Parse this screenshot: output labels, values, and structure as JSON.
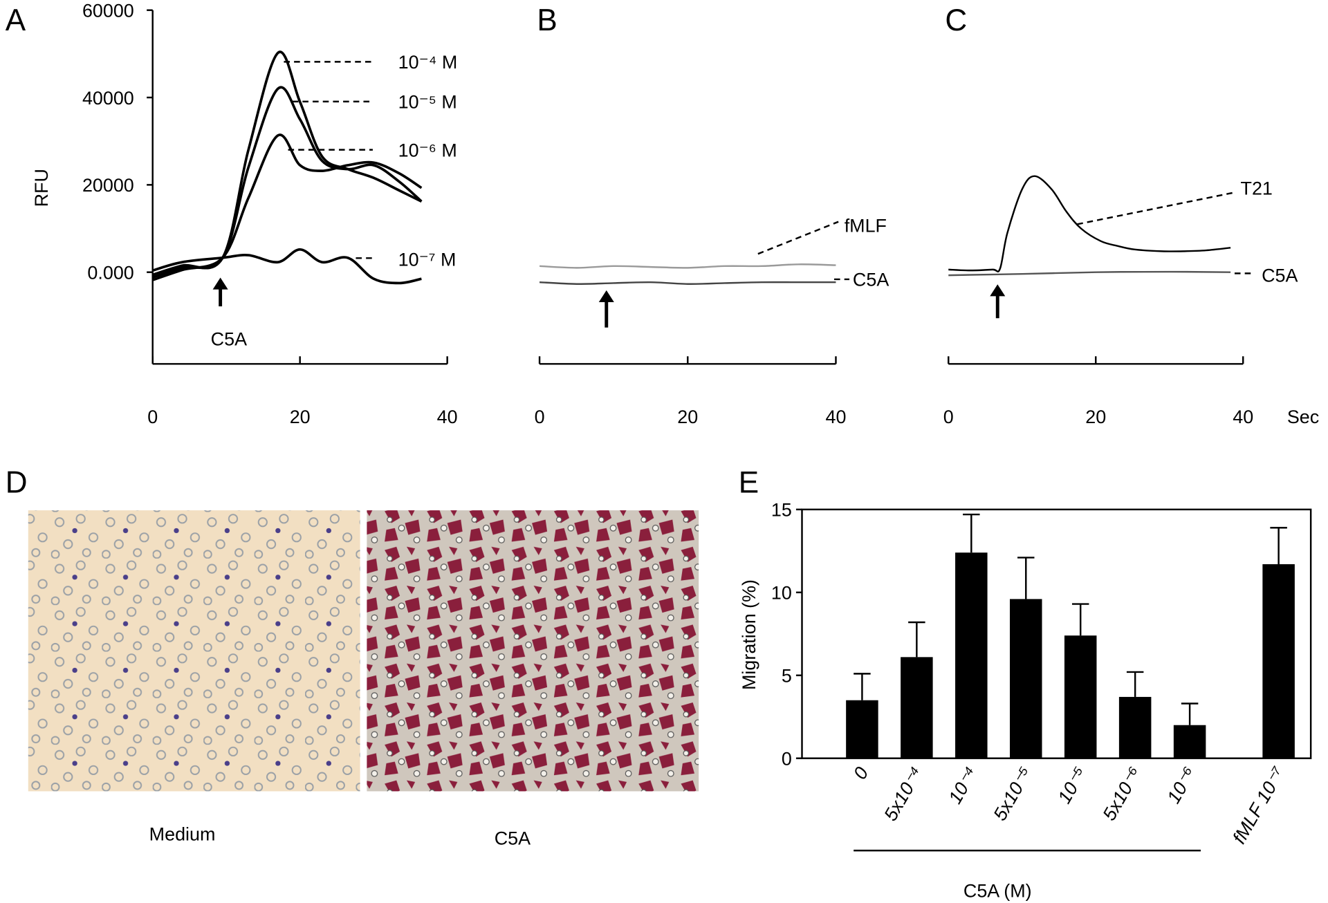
{
  "chart_data": [
    {
      "type": "line",
      "panel": "A",
      "ylabel": "RFU",
      "annotation": "C5A",
      "x": [
        0,
        4,
        9.5,
        13,
        17,
        20,
        23,
        26.5,
        30,
        33.5,
        36.5
      ],
      "series": [
        {
          "name": "10⁻⁴ M",
          "color": "#000000",
          "values": [
            -600,
            1500,
            3300,
            28000,
            50200,
            39000,
            26500,
            23600,
            21600,
            18700,
            16200
          ]
        },
        {
          "name": "10⁻⁵ M",
          "color": "#000000",
          "values": [
            -1200,
            1000,
            3300,
            24000,
            42000,
            35000,
            25500,
            23600,
            24500,
            20700,
            16200
          ]
        },
        {
          "name": "10⁻⁶ M",
          "color": "#000000",
          "values": [
            -1800,
            500,
            3300,
            17000,
            31300,
            24500,
            23200,
            24500,
            25100,
            22600,
            19300
          ]
        },
        {
          "name": "10⁻⁷ M",
          "color": "#000000",
          "values": [
            400,
            2300,
            3300,
            3900,
            2300,
            5200,
            2300,
            3300,
            -1500,
            -2500,
            -1500
          ]
        }
      ],
      "xlim": [
        0,
        40
      ],
      "xticks": [
        0,
        20,
        40
      ],
      "ylim": [
        -21000,
        60000
      ],
      "yticks": [
        {
          "value": 0,
          "label": "0.000"
        },
        20000,
        40000,
        60000
      ]
    },
    {
      "type": "line",
      "panel": "B",
      "x": [
        0,
        5,
        10,
        15,
        20,
        25,
        30,
        35,
        40
      ],
      "series": [
        {
          "name": "fMLF",
          "color": "#9a9a9a",
          "values": [
            1400,
            1000,
            1400,
            1200,
            1000,
            1400,
            1400,
            1800,
            1600
          ]
        },
        {
          "name": "C5A",
          "color": "#444444",
          "values": [
            -2300,
            -2700,
            -2500,
            -2300,
            -2700,
            -2500,
            -2300,
            -2300,
            -2300
          ]
        }
      ],
      "xlim": [
        0,
        40
      ],
      "xticks": [
        0,
        20,
        40
      ],
      "ylim": [
        -21000,
        60000
      ]
    },
    {
      "type": "line",
      "panel": "C",
      "xlabel": "Sec",
      "series": [
        {
          "name": "T21",
          "color": "#000000",
          "x": [
            0,
            3,
            6,
            7,
            8,
            10,
            11.7,
            14,
            16,
            18,
            20.7,
            23,
            25.3,
            29,
            32,
            35,
            38.3
          ],
          "values": [
            600,
            400,
            600,
            800,
            9000,
            19000,
            22000,
            19000,
            13900,
            10000,
            7100,
            6000,
            5200,
            4800,
            4800,
            5000,
            5600
          ]
        },
        {
          "name": "C5A",
          "color": "#555555",
          "x": [
            0,
            10,
            20,
            30,
            38.3
          ],
          "values": [
            -700,
            -400,
            0,
            100,
            0
          ]
        }
      ],
      "xlim": [
        0,
        40
      ],
      "xticks": [
        0,
        20,
        40
      ],
      "ylim": [
        -21000,
        60000
      ]
    },
    {
      "type": "bar",
      "panel": "E",
      "ylabel": "Migration (%)",
      "group_label": "C5A (M)",
      "categories": [
        "0",
        "5x10⁻⁴",
        "10⁻⁴",
        "5x10⁻⁵",
        "10⁻⁵",
        "5x10⁻⁶",
        "10⁻⁶",
        "fMLF 10⁻⁷"
      ],
      "values": [
        3.5,
        6.1,
        12.4,
        9.6,
        7.4,
        3.7,
        2.0,
        11.7
      ],
      "errors": [
        1.6,
        2.1,
        2.3,
        2.5,
        1.9,
        1.5,
        1.3,
        2.2
      ],
      "color": "#000000",
      "ylim": [
        0,
        15
      ],
      "yticks": [
        0,
        5,
        10,
        15
      ]
    }
  ],
  "figure_d": {
    "panel": "D",
    "labels": [
      "Medium",
      "C5A"
    ]
  }
}
